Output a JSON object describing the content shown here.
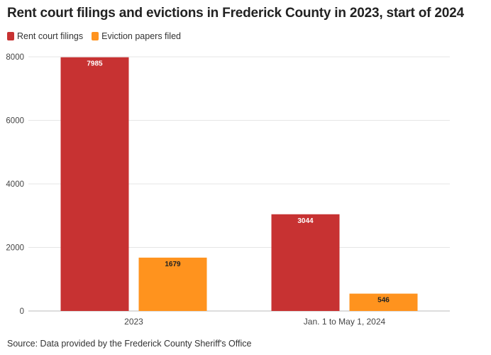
{
  "chart_data": {
    "type": "bar",
    "title": "Rent court filings and evictions in Frederick County in 2023, start of 2024",
    "categories": [
      "2023",
      "Jan. 1 to May 1, 2024"
    ],
    "series": [
      {
        "name": "Rent court filings",
        "color": "#c73232",
        "label_color": "#ffffff",
        "values": [
          7985,
          3044
        ]
      },
      {
        "name": "Eviction papers filed",
        "color": "#ff931e",
        "label_color": "#222222",
        "values": [
          1679,
          546
        ]
      }
    ],
    "yticks": [
      0,
      2000,
      4000,
      6000,
      8000
    ],
    "ylim": [
      0,
      8000
    ],
    "xlabel": "",
    "ylabel": "",
    "grid": true,
    "legend": "top-left",
    "source": "Source: Data provided by the Frederick County Sheriff's Office"
  }
}
